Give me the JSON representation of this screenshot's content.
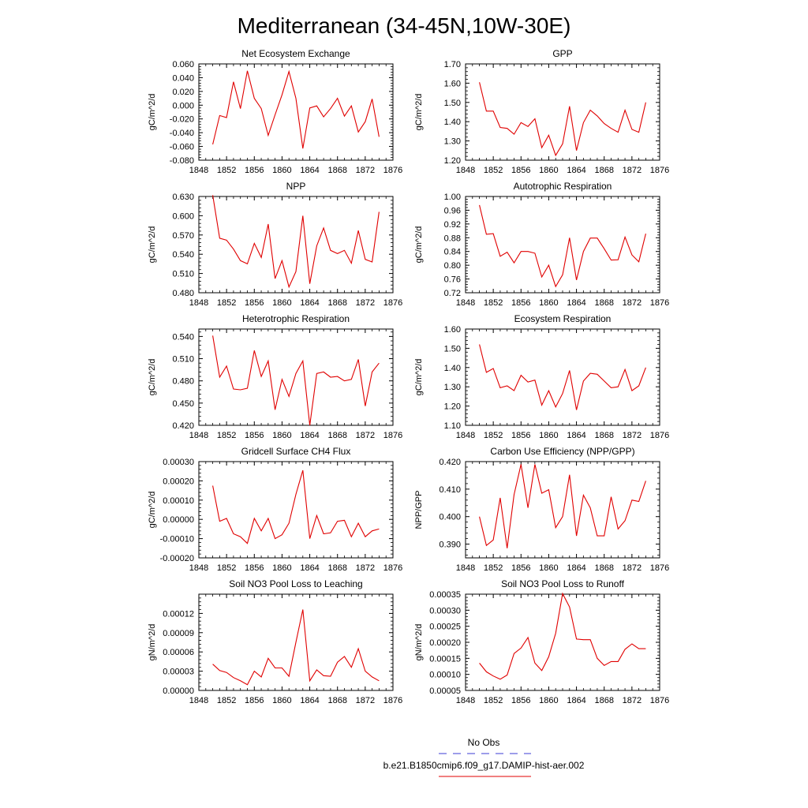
{
  "title": "Mediterranean (34-45N,10W-30E)",
  "legend": {
    "obs_label": "No Obs",
    "model_label": "b.e21.B1850cmip6.f09_g17.DAMIP-hist-aer.002",
    "obs_color": "#3b3bd6",
    "model_color": "#e00000"
  },
  "chart_data": [
    {
      "type": "line",
      "title": "Net Ecosystem Exchange",
      "ylabel": "gC/m^2/d",
      "xlim": [
        1848,
        1876
      ],
      "xticks": [
        "1848",
        "1852",
        "1856",
        "1860",
        "1864",
        "1868",
        "1872",
        "1876"
      ],
      "ylim": [
        -0.08,
        0.06
      ],
      "yticks": [
        "-0.080",
        "-0.060",
        "-0.040",
        "-0.020",
        "0.000",
        "0.020",
        "0.040",
        "0.060"
      ],
      "series": [
        {
          "x": [
            1850,
            1851,
            1852,
            1853,
            1854,
            1855,
            1856,
            1857,
            1858,
            1859,
            1860,
            1861,
            1862,
            1863,
            1864,
            1865,
            1866,
            1867,
            1868,
            1869,
            1870,
            1871,
            1872,
            1873,
            1874
          ],
          "values": [
            -0.057,
            -0.015,
            -0.018,
            0.034,
            -0.005,
            0.05,
            0.01,
            -0.005,
            -0.044,
            -0.014,
            0.015,
            0.049,
            0.01,
            -0.063,
            -0.004,
            -0.001,
            -0.017,
            -0.005,
            0.01,
            -0.016,
            -0.001,
            -0.039,
            -0.024,
            0.009,
            -0.046
          ]
        }
      ]
    },
    {
      "type": "line",
      "title": "GPP",
      "ylabel": "gC/m^2/d",
      "xlim": [
        1848,
        1876
      ],
      "xticks": [
        "1848",
        "1852",
        "1856",
        "1860",
        "1864",
        "1868",
        "1872",
        "1876"
      ],
      "ylim": [
        1.2,
        1.7
      ],
      "yticks": [
        "1.20",
        "1.30",
        "1.40",
        "1.50",
        "1.60",
        "1.70"
      ],
      "series": [
        {
          "x": [
            1850,
            1851,
            1852,
            1853,
            1854,
            1855,
            1856,
            1857,
            1858,
            1859,
            1860,
            1861,
            1862,
            1863,
            1864,
            1865,
            1866,
            1867,
            1868,
            1869,
            1870,
            1871,
            1872,
            1873,
            1874
          ],
          "values": [
            1.605,
            1.455,
            1.455,
            1.37,
            1.365,
            1.335,
            1.395,
            1.375,
            1.415,
            1.265,
            1.33,
            1.225,
            1.285,
            1.48,
            1.25,
            1.395,
            1.46,
            1.43,
            1.39,
            1.365,
            1.345,
            1.46,
            1.36,
            1.345,
            1.5
          ]
        }
      ]
    },
    {
      "type": "line",
      "title": "NPP",
      "ylabel": "gC/m^2/d",
      "xlim": [
        1848,
        1876
      ],
      "xticks": [
        "1848",
        "1852",
        "1856",
        "1860",
        "1864",
        "1868",
        "1872",
        "1876"
      ],
      "ylim": [
        0.48,
        0.63
      ],
      "yticks": [
        "0.480",
        "0.510",
        "0.540",
        "0.570",
        "0.600",
        "0.630"
      ],
      "series": [
        {
          "x": [
            1850,
            1851,
            1852,
            1853,
            1854,
            1855,
            1856,
            1857,
            1858,
            1859,
            1860,
            1861,
            1862,
            1863,
            1864,
            1865,
            1866,
            1867,
            1868,
            1869,
            1870,
            1871,
            1872,
            1873,
            1874
          ],
          "values": [
            0.632,
            0.565,
            0.562,
            0.548,
            0.53,
            0.525,
            0.557,
            0.535,
            0.587,
            0.502,
            0.53,
            0.489,
            0.513,
            0.6,
            0.494,
            0.553,
            0.581,
            0.546,
            0.541,
            0.546,
            0.526,
            0.577,
            0.532,
            0.528,
            0.606
          ]
        }
      ]
    },
    {
      "type": "line",
      "title": "Autotrophic Respiration",
      "ylabel": "gC/m^2/d",
      "xlim": [
        1848,
        1876
      ],
      "xticks": [
        "1848",
        "1852",
        "1856",
        "1860",
        "1864",
        "1868",
        "1872",
        "1876"
      ],
      "ylim": [
        0.72,
        1.0
      ],
      "yticks": [
        "0.72",
        "0.76",
        "0.80",
        "0.84",
        "0.88",
        "0.92",
        "0.96",
        "1.00"
      ],
      "series": [
        {
          "x": [
            1850,
            1851,
            1852,
            1853,
            1854,
            1855,
            1856,
            1857,
            1858,
            1859,
            1860,
            1861,
            1862,
            1863,
            1864,
            1865,
            1866,
            1867,
            1868,
            1869,
            1870,
            1871,
            1872,
            1873,
            1874
          ],
          "values": [
            0.975,
            0.89,
            0.892,
            0.826,
            0.838,
            0.807,
            0.84,
            0.84,
            0.835,
            0.766,
            0.8,
            0.738,
            0.772,
            0.88,
            0.757,
            0.84,
            0.879,
            0.879,
            0.848,
            0.815,
            0.816,
            0.882,
            0.83,
            0.81,
            0.892
          ]
        }
      ]
    },
    {
      "type": "line",
      "title": "Heterotrophic Respiration",
      "ylabel": "gC/m^2/d",
      "xlim": [
        1848,
        1876
      ],
      "xticks": [
        "1848",
        "1852",
        "1856",
        "1860",
        "1864",
        "1868",
        "1872",
        "1876"
      ],
      "ylim": [
        0.42,
        0.55
      ],
      "yticks": [
        "0.420",
        "0.450",
        "0.480",
        "0.510",
        "0.540"
      ],
      "series": [
        {
          "x": [
            1850,
            1851,
            1852,
            1853,
            1854,
            1855,
            1856,
            1857,
            1858,
            1859,
            1860,
            1861,
            1862,
            1863,
            1864,
            1865,
            1866,
            1867,
            1868,
            1869,
            1870,
            1871,
            1872,
            1873,
            1874
          ],
          "values": [
            0.541,
            0.485,
            0.5,
            0.469,
            0.468,
            0.47,
            0.521,
            0.486,
            0.507,
            0.441,
            0.482,
            0.459,
            0.49,
            0.507,
            0.42,
            0.49,
            0.492,
            0.485,
            0.486,
            0.48,
            0.482,
            0.509,
            0.446,
            0.492,
            0.504
          ]
        }
      ]
    },
    {
      "type": "line",
      "title": "Ecosystem Respiration",
      "ylabel": "gC/m^2/d",
      "xlim": [
        1848,
        1876
      ],
      "xticks": [
        "1848",
        "1852",
        "1856",
        "1860",
        "1864",
        "1868",
        "1872",
        "1876"
      ],
      "ylim": [
        1.1,
        1.6
      ],
      "yticks": [
        "1.10",
        "1.20",
        "1.30",
        "1.40",
        "1.50",
        "1.60"
      ],
      "series": [
        {
          "x": [
            1850,
            1851,
            1852,
            1853,
            1854,
            1855,
            1856,
            1857,
            1858,
            1859,
            1860,
            1861,
            1862,
            1863,
            1864,
            1865,
            1866,
            1867,
            1868,
            1869,
            1870,
            1871,
            1872,
            1873,
            1874
          ],
          "values": [
            1.52,
            1.375,
            1.395,
            1.295,
            1.305,
            1.28,
            1.36,
            1.325,
            1.335,
            1.205,
            1.28,
            1.195,
            1.265,
            1.385,
            1.18,
            1.33,
            1.37,
            1.365,
            1.33,
            1.295,
            1.3,
            1.39,
            1.28,
            1.305,
            1.4
          ]
        }
      ]
    },
    {
      "type": "line",
      "title": "Gridcell Surface CH4 Flux",
      "ylabel": "gC/m^2/d",
      "xlim": [
        1848,
        1876
      ],
      "xticks": [
        "1848",
        "1852",
        "1856",
        "1860",
        "1864",
        "1868",
        "1872",
        "1876"
      ],
      "ylim": [
        -0.0002,
        0.0003
      ],
      "yticks": [
        "-0.00020",
        "-0.00010",
        "0.00000",
        "0.00010",
        "0.00020",
        "0.00030"
      ],
      "series": [
        {
          "x": [
            1850,
            1851,
            1852,
            1853,
            1854,
            1855,
            1856,
            1857,
            1858,
            1859,
            1860,
            1861,
            1862,
            1863,
            1864,
            1865,
            1866,
            1867,
            1868,
            1869,
            1870,
            1871,
            1872,
            1873,
            1874
          ],
          "values": [
            0.000175,
            -1e-05,
            5e-06,
            -7.5e-05,
            -9e-05,
            -0.000125,
            5e-06,
            -6e-05,
            5e-06,
            -0.0001,
            -8e-05,
            -2e-05,
            0.00013,
            0.000255,
            -0.0001,
            2e-05,
            -7.5e-05,
            -7e-05,
            -1e-05,
            -5e-06,
            -9e-05,
            -2e-05,
            -9e-05,
            -6e-05,
            -5e-05
          ]
        }
      ]
    },
    {
      "type": "line",
      "title": "Carbon Use Efficiency (NPP/GPP)",
      "ylabel": "NPP/GPP",
      "xlim": [
        1848,
        1876
      ],
      "xticks": [
        "1848",
        "1852",
        "1856",
        "1860",
        "1864",
        "1868",
        "1872",
        "1876"
      ],
      "ylim": [
        0.385,
        0.42
      ],
      "yticks": [
        "0.390",
        "0.400",
        "0.410",
        "0.420"
      ],
      "series": [
        {
          "x": [
            1850,
            1851,
            1852,
            1853,
            1854,
            1855,
            1856,
            1857,
            1858,
            1859,
            1860,
            1861,
            1862,
            1863,
            1864,
            1865,
            1866,
            1867,
            1868,
            1869,
            1870,
            1871,
            1872,
            1873,
            1874
          ],
          "values": [
            0.4,
            0.3895,
            0.3915,
            0.4068,
            0.3885,
            0.408,
            0.419,
            0.4032,
            0.419,
            0.4085,
            0.4098,
            0.396,
            0.4,
            0.4152,
            0.393,
            0.4078,
            0.4032,
            0.393,
            0.393,
            0.4072,
            0.3955,
            0.3985,
            0.406,
            0.4055,
            0.413
          ]
        }
      ]
    },
    {
      "type": "line",
      "title": "Soil NO3 Pool Loss to Leaching",
      "ylabel": "gN/m^2/d",
      "xlim": [
        1848,
        1876
      ],
      "xticks": [
        "1848",
        "1852",
        "1856",
        "1860",
        "1864",
        "1868",
        "1872",
        "1876"
      ],
      "ylim": [
        0.0,
        0.00015
      ],
      "yticks": [
        "0.00000",
        "0.00003",
        "0.00006",
        "0.00009",
        "0.00012"
      ],
      "series": [
        {
          "x": [
            1850,
            1851,
            1852,
            1853,
            1854,
            1855,
            1856,
            1857,
            1858,
            1859,
            1860,
            1861,
            1862,
            1863,
            1864,
            1865,
            1866,
            1867,
            1868,
            1869,
            1870,
            1871,
            1872,
            1873,
            1874
          ],
          "values": [
            4.1e-05,
            3.1e-05,
            2.8e-05,
            2e-05,
            1.5e-05,
            9e-06,
            3e-05,
            2.1e-05,
            5e-05,
            3.5e-05,
            3.5e-05,
            2.2e-05,
            7.5e-05,
            0.000126,
            1.5e-05,
            3.2e-05,
            2.3e-05,
            2.2e-05,
            4.4e-05,
            5.3e-05,
            3.6e-05,
            6.5e-05,
            3e-05,
            2.1e-05,
            1.5e-05
          ]
        }
      ]
    },
    {
      "type": "line",
      "title": "Soil NO3 Pool Loss to Runoff",
      "ylabel": "gN/m^2/d",
      "xlim": [
        1848,
        1876
      ],
      "xticks": [
        "1848",
        "1852",
        "1856",
        "1860",
        "1864",
        "1868",
        "1872",
        "1876"
      ],
      "ylim": [
        5e-05,
        0.00035
      ],
      "yticks": [
        "0.00005",
        "0.00010",
        "0.00015",
        "0.00020",
        "0.00025",
        "0.00030",
        "0.00035"
      ],
      "series": [
        {
          "x": [
            1850,
            1851,
            1852,
            1853,
            1854,
            1855,
            1856,
            1857,
            1858,
            1859,
            1860,
            1861,
            1862,
            1863,
            1864,
            1865,
            1866,
            1867,
            1868,
            1869,
            1870,
            1871,
            1872,
            1873,
            1874
          ],
          "values": [
            0.000135,
            0.000108,
            9.5e-05,
            8.5e-05,
            9.8e-05,
            0.000165,
            0.000182,
            0.000215,
            0.000135,
            0.000112,
            0.000155,
            0.000228,
            0.000352,
            0.00031,
            0.00021,
            0.000208,
            0.000208,
            0.00015,
            0.000128,
            0.00014,
            0.00014,
            0.000178,
            0.000195,
            0.00018,
            0.00018
          ]
        }
      ]
    }
  ]
}
